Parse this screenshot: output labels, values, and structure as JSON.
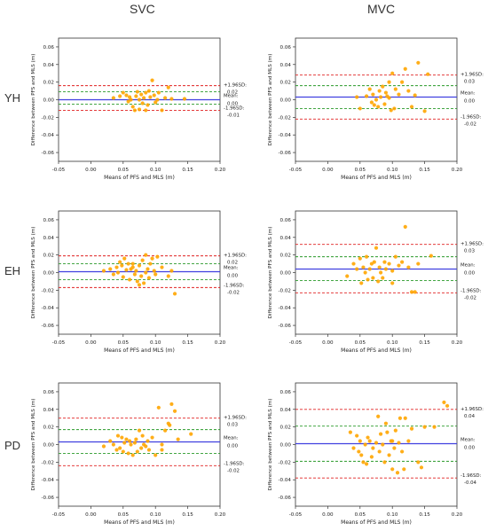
{
  "column_headers": [
    "SVC",
    "MVC"
  ],
  "row_headers": [
    "YH",
    "EH",
    "PD"
  ],
  "colors": {
    "points": "#ffa500",
    "mean_line": "#4040e0",
    "loa_line": "#e02020",
    "inner_line": "#2a9a2a"
  },
  "labels": {
    "xlabel": "Means of PFS and MLS (m)",
    "ylabel": "Difference between PFS and MLS (m)",
    "upper_prefix": "+1.96SD:",
    "lower_prefix": "-1.96SD:",
    "mean_prefix": "Mean:"
  },
  "chart_data": [
    {
      "type": "scatter",
      "panel": "YH-SVC",
      "xlabel": "Means of PFS and MLS (m)",
      "ylabel": "Difference between PFS and MLS (m)",
      "xlim": [
        -0.05,
        0.2
      ],
      "ylim": [
        -0.07,
        0.07
      ],
      "xticks": [
        "-0.05",
        "0.00",
        "0.05",
        "0.10",
        "0.15",
        "0.20"
      ],
      "yticks": [
        "-0.06",
        "-0.04",
        "-0.02",
        "0.00",
        "0.02",
        "0.04",
        "0.06"
      ],
      "mean": 0.0,
      "upper_loa": 0.016,
      "lower_loa": -0.012,
      "inner_upper": 0.009,
      "inner_lower": -0.005,
      "upper_label": "0.02",
      "mean_label": "0.00",
      "lower_label": "-0.01",
      "points": [
        [
          0.035,
          0.002
        ],
        [
          0.045,
          0.004
        ],
        [
          0.05,
          0.008
        ],
        [
          0.055,
          0.005
        ],
        [
          0.058,
          -0.002
        ],
        [
          0.06,
          0.003
        ],
        [
          0.062,
          0.0
        ],
        [
          0.065,
          -0.008
        ],
        [
          0.068,
          -0.012
        ],
        [
          0.07,
          0.004
        ],
        [
          0.072,
          0.009
        ],
        [
          0.075,
          0.0
        ],
        [
          0.078,
          0.006
        ],
        [
          0.08,
          -0.004
        ],
        [
          0.082,
          0.002
        ],
        [
          0.085,
          0.008
        ],
        [
          0.088,
          -0.006
        ],
        [
          0.09,
          0.01
        ],
        [
          0.092,
          0.003
        ],
        [
          0.095,
          0.022
        ],
        [
          0.098,
          0.005
        ],
        [
          0.1,
          -0.003
        ],
        [
          0.103,
          0.0
        ],
        [
          0.105,
          0.008
        ],
        [
          0.11,
          -0.012
        ],
        [
          0.115,
          0.002
        ],
        [
          0.12,
          0.014
        ],
        [
          0.125,
          0.001
        ],
        [
          0.145,
          0.001
        ],
        [
          0.085,
          -0.012
        ],
        [
          0.075,
          -0.011
        ]
      ]
    },
    {
      "type": "scatter",
      "panel": "YH-MVC",
      "xlabel": "Means of PFS and MLS (m)",
      "ylabel": "Difference between PFS and MLS (m)",
      "xlim": [
        -0.05,
        0.2
      ],
      "ylim": [
        -0.07,
        0.07
      ],
      "xticks": [
        "-0.05",
        "0.00",
        "0.05",
        "0.10",
        "0.15",
        "0.20"
      ],
      "yticks": [
        "-0.06",
        "-0.04",
        "-0.02",
        "0.00",
        "0.02",
        "0.04",
        "0.06"
      ],
      "mean": 0.003,
      "upper_loa": 0.028,
      "lower_loa": -0.022,
      "inner_upper": 0.016,
      "inner_lower": -0.01,
      "upper_label": "0.03",
      "mean_label": "0.00",
      "lower_label": "-0.02",
      "points": [
        [
          0.045,
          0.003
        ],
        [
          0.05,
          -0.01
        ],
        [
          0.06,
          0.004
        ],
        [
          0.065,
          0.012
        ],
        [
          0.068,
          -0.003
        ],
        [
          0.07,
          0.006
        ],
        [
          0.072,
          -0.006
        ],
        [
          0.075,
          0.0
        ],
        [
          0.078,
          -0.008
        ],
        [
          0.08,
          0.01
        ],
        [
          0.082,
          0.003
        ],
        [
          0.085,
          0.015
        ],
        [
          0.088,
          -0.005
        ],
        [
          0.09,
          0.008
        ],
        [
          0.092,
          0.004
        ],
        [
          0.095,
          0.002
        ],
        [
          0.098,
          -0.012
        ],
        [
          0.1,
          0.03
        ],
        [
          0.103,
          -0.01
        ],
        [
          0.105,
          0.012
        ],
        [
          0.11,
          0.006
        ],
        [
          0.115,
          0.02
        ],
        [
          0.12,
          0.035
        ],
        [
          0.125,
          0.01
        ],
        [
          0.13,
          -0.008
        ],
        [
          0.135,
          0.005
        ],
        [
          0.14,
          0.042
        ],
        [
          0.15,
          -0.013
        ],
        [
          0.155,
          0.029
        ],
        [
          0.095,
          0.02
        ]
      ]
    },
    {
      "type": "scatter",
      "panel": "EH-SVC",
      "xlabel": "Means of PFS and MLS (m)",
      "ylabel": "Difference between PFS and MLS (m)",
      "xlim": [
        -0.05,
        0.2
      ],
      "ylim": [
        -0.07,
        0.07
      ],
      "xticks": [
        "-0.05",
        "0.00",
        "0.05",
        "0.10",
        "0.15",
        "0.20"
      ],
      "yticks": [
        "-0.06",
        "-0.04",
        "-0.02",
        "0.00",
        "0.02",
        "0.04",
        "0.06"
      ],
      "mean": 0.001,
      "upper_loa": 0.019,
      "lower_loa": -0.017,
      "inner_upper": 0.01,
      "inner_lower": -0.008,
      "upper_label": "0.02",
      "mean_label": "0.00",
      "lower_label": "-0.02",
      "points": [
        [
          0.02,
          0.002
        ],
        [
          0.03,
          0.004
        ],
        [
          0.035,
          -0.002
        ],
        [
          0.04,
          0.006
        ],
        [
          0.042,
          0.0
        ],
        [
          0.045,
          0.012
        ],
        [
          0.048,
          0.008
        ],
        [
          0.05,
          -0.005
        ],
        [
          0.052,
          0.016
        ],
        [
          0.055,
          0.003
        ],
        [
          0.058,
          0.01
        ],
        [
          0.06,
          -0.008
        ],
        [
          0.062,
          0.004
        ],
        [
          0.065,
          0.006
        ],
        [
          0.068,
          -0.002
        ],
        [
          0.07,
          0.002
        ],
        [
          0.072,
          -0.01
        ],
        [
          0.075,
          0.008
        ],
        [
          0.078,
          -0.004
        ],
        [
          0.08,
          0.014
        ],
        [
          0.082,
          -0.012
        ],
        [
          0.085,
          0.02
        ],
        [
          0.088,
          0.004
        ],
        [
          0.09,
          -0.006
        ],
        [
          0.092,
          0.01
        ],
        [
          0.095,
          0.016
        ],
        [
          0.098,
          0.002
        ],
        [
          0.1,
          -0.002
        ],
        [
          0.103,
          0.018
        ],
        [
          0.11,
          0.006
        ],
        [
          0.12,
          -0.004
        ],
        [
          0.125,
          0.002
        ],
        [
          0.13,
          -0.024
        ],
        [
          0.075,
          -0.014
        ],
        [
          0.085,
          0.0
        ],
        [
          0.065,
          0.01
        ]
      ]
    },
    {
      "type": "scatter",
      "panel": "EH-MVC",
      "xlabel": "Means of PFS and MLS (m)",
      "ylabel": "Difference between PFS and MLS (m)",
      "xlim": [
        -0.05,
        0.2
      ],
      "ylim": [
        -0.07,
        0.07
      ],
      "xticks": [
        "-0.05",
        "0.00",
        "0.05",
        "0.10",
        "0.15",
        "0.20"
      ],
      "yticks": [
        "-0.06",
        "-0.04",
        "-0.02",
        "0.00",
        "0.02",
        "0.04",
        "0.06"
      ],
      "mean": 0.004,
      "upper_loa": 0.032,
      "lower_loa": -0.023,
      "inner_upper": 0.018,
      "inner_lower": -0.009,
      "upper_label": "0.03",
      "mean_label": "0.00",
      "lower_label": "-0.02",
      "points": [
        [
          0.03,
          -0.004
        ],
        [
          0.04,
          0.01
        ],
        [
          0.045,
          0.004
        ],
        [
          0.05,
          0.016
        ],
        [
          0.052,
          -0.012
        ],
        [
          0.055,
          0.006
        ],
        [
          0.058,
          0.0
        ],
        [
          0.06,
          0.018
        ],
        [
          0.062,
          -0.008
        ],
        [
          0.065,
          0.004
        ],
        [
          0.068,
          0.01
        ],
        [
          0.07,
          -0.006
        ],
        [
          0.072,
          0.012
        ],
        [
          0.075,
          0.028
        ],
        [
          0.078,
          -0.01
        ],
        [
          0.08,
          0.006
        ],
        [
          0.082,
          0.0
        ],
        [
          0.085,
          -0.006
        ],
        [
          0.088,
          0.012
        ],
        [
          0.09,
          0.004
        ],
        [
          0.095,
          0.01
        ],
        [
          0.1,
          0.002
        ],
        [
          0.105,
          0.018
        ],
        [
          0.11,
          0.008
        ],
        [
          0.115,
          0.012
        ],
        [
          0.12,
          0.052
        ],
        [
          0.125,
          0.006
        ],
        [
          0.13,
          -0.022
        ],
        [
          0.135,
          -0.022
        ],
        [
          0.14,
          0.01
        ],
        [
          0.16,
          0.019
        ],
        [
          0.1,
          -0.012
        ]
      ]
    },
    {
      "type": "scatter",
      "panel": "PD-SVC",
      "xlabel": "Means of PFS and MLS (m)",
      "ylabel": "Difference between PFS and MLS (m)",
      "xlim": [
        -0.05,
        0.2
      ],
      "ylim": [
        -0.07,
        0.07
      ],
      "xticks": [
        "-0.05",
        "0.00",
        "0.05",
        "0.10",
        "0.15",
        "0.20"
      ],
      "yticks": [
        "-0.06",
        "-0.04",
        "-0.02",
        "0.00",
        "0.02",
        "0.04",
        "0.06"
      ],
      "mean": 0.003,
      "upper_loa": 0.03,
      "lower_loa": -0.024,
      "inner_upper": 0.017,
      "inner_lower": -0.01,
      "upper_label": "0.03",
      "mean_label": "0.00",
      "lower_label": "-0.02",
      "points": [
        [
          0.02,
          -0.002
        ],
        [
          0.03,
          0.004
        ],
        [
          0.035,
          0.0
        ],
        [
          0.04,
          -0.006
        ],
        [
          0.042,
          0.01
        ],
        [
          0.045,
          -0.004
        ],
        [
          0.048,
          0.008
        ],
        [
          0.05,
          -0.008
        ],
        [
          0.052,
          0.002
        ],
        [
          0.055,
          0.006
        ],
        [
          0.058,
          -0.01
        ],
        [
          0.06,
          0.004
        ],
        [
          0.062,
          0.0
        ],
        [
          0.065,
          -0.012
        ],
        [
          0.068,
          0.002
        ],
        [
          0.07,
          0.006
        ],
        [
          0.072,
          -0.008
        ],
        [
          0.075,
          0.016
        ],
        [
          0.078,
          -0.004
        ],
        [
          0.08,
          0.01
        ],
        [
          0.082,
          0.0
        ],
        [
          0.085,
          -0.002
        ],
        [
          0.088,
          0.004
        ],
        [
          0.09,
          -0.006
        ],
        [
          0.095,
          0.008
        ],
        [
          0.1,
          -0.012
        ],
        [
          0.105,
          0.042
        ],
        [
          0.11,
          -0.006
        ],
        [
          0.115,
          0.016
        ],
        [
          0.12,
          0.024
        ],
        [
          0.122,
          0.022
        ],
        [
          0.125,
          0.046
        ],
        [
          0.13,
          0.038
        ],
        [
          0.135,
          0.006
        ],
        [
          0.155,
          0.012
        ],
        [
          0.11,
          0.0
        ]
      ]
    },
    {
      "type": "scatter",
      "panel": "PD-MVC",
      "xlabel": "Means of PFS and MLS (m)",
      "ylabel": "Difference between PFS and MLS (m)",
      "xlim": [
        -0.05,
        0.2
      ],
      "ylim": [
        -0.07,
        0.07
      ],
      "xticks": [
        "-0.05",
        "0.00",
        "0.05",
        "0.10",
        "0.15",
        "0.20"
      ],
      "yticks": [
        "-0.06",
        "-0.04",
        "-0.02",
        "0.00",
        "0.02",
        "0.04",
        "0.06"
      ],
      "mean": 0.001,
      "upper_loa": 0.04,
      "lower_loa": -0.038,
      "inner_upper": 0.021,
      "inner_lower": -0.019,
      "upper_label": "0.04",
      "mean_label": "0.00",
      "lower_label": "-0.04",
      "points": [
        [
          0.035,
          0.014
        ],
        [
          0.04,
          -0.004
        ],
        [
          0.045,
          0.01
        ],
        [
          0.048,
          -0.008
        ],
        [
          0.05,
          0.004
        ],
        [
          0.052,
          -0.012
        ],
        [
          0.055,
          -0.02
        ],
        [
          0.058,
          0.0
        ],
        [
          0.06,
          -0.022
        ],
        [
          0.062,
          0.008
        ],
        [
          0.065,
          0.004
        ],
        [
          0.068,
          -0.014
        ],
        [
          0.07,
          -0.004
        ],
        [
          0.075,
          0.002
        ],
        [
          0.078,
          0.032
        ],
        [
          0.08,
          -0.008
        ],
        [
          0.082,
          0.012
        ],
        [
          0.085,
          0.0
        ],
        [
          0.088,
          -0.02
        ],
        [
          0.09,
          0.024
        ],
        [
          0.092,
          0.014
        ],
        [
          0.095,
          -0.012
        ],
        [
          0.098,
          0.004
        ],
        [
          0.1,
          -0.028
        ],
        [
          0.103,
          -0.004
        ],
        [
          0.105,
          0.016
        ],
        [
          0.108,
          -0.032
        ],
        [
          0.11,
          0.002
        ],
        [
          0.112,
          0.03
        ],
        [
          0.115,
          -0.008
        ],
        [
          0.118,
          -0.028
        ],
        [
          0.12,
          0.03
        ],
        [
          0.125,
          0.004
        ],
        [
          0.13,
          0.018
        ],
        [
          0.14,
          -0.02
        ],
        [
          0.145,
          -0.026
        ],
        [
          0.15,
          0.02
        ],
        [
          0.165,
          0.02
        ],
        [
          0.18,
          0.048
        ],
        [
          0.185,
          0.044
        ],
        [
          0.1,
          0.004
        ]
      ]
    }
  ]
}
